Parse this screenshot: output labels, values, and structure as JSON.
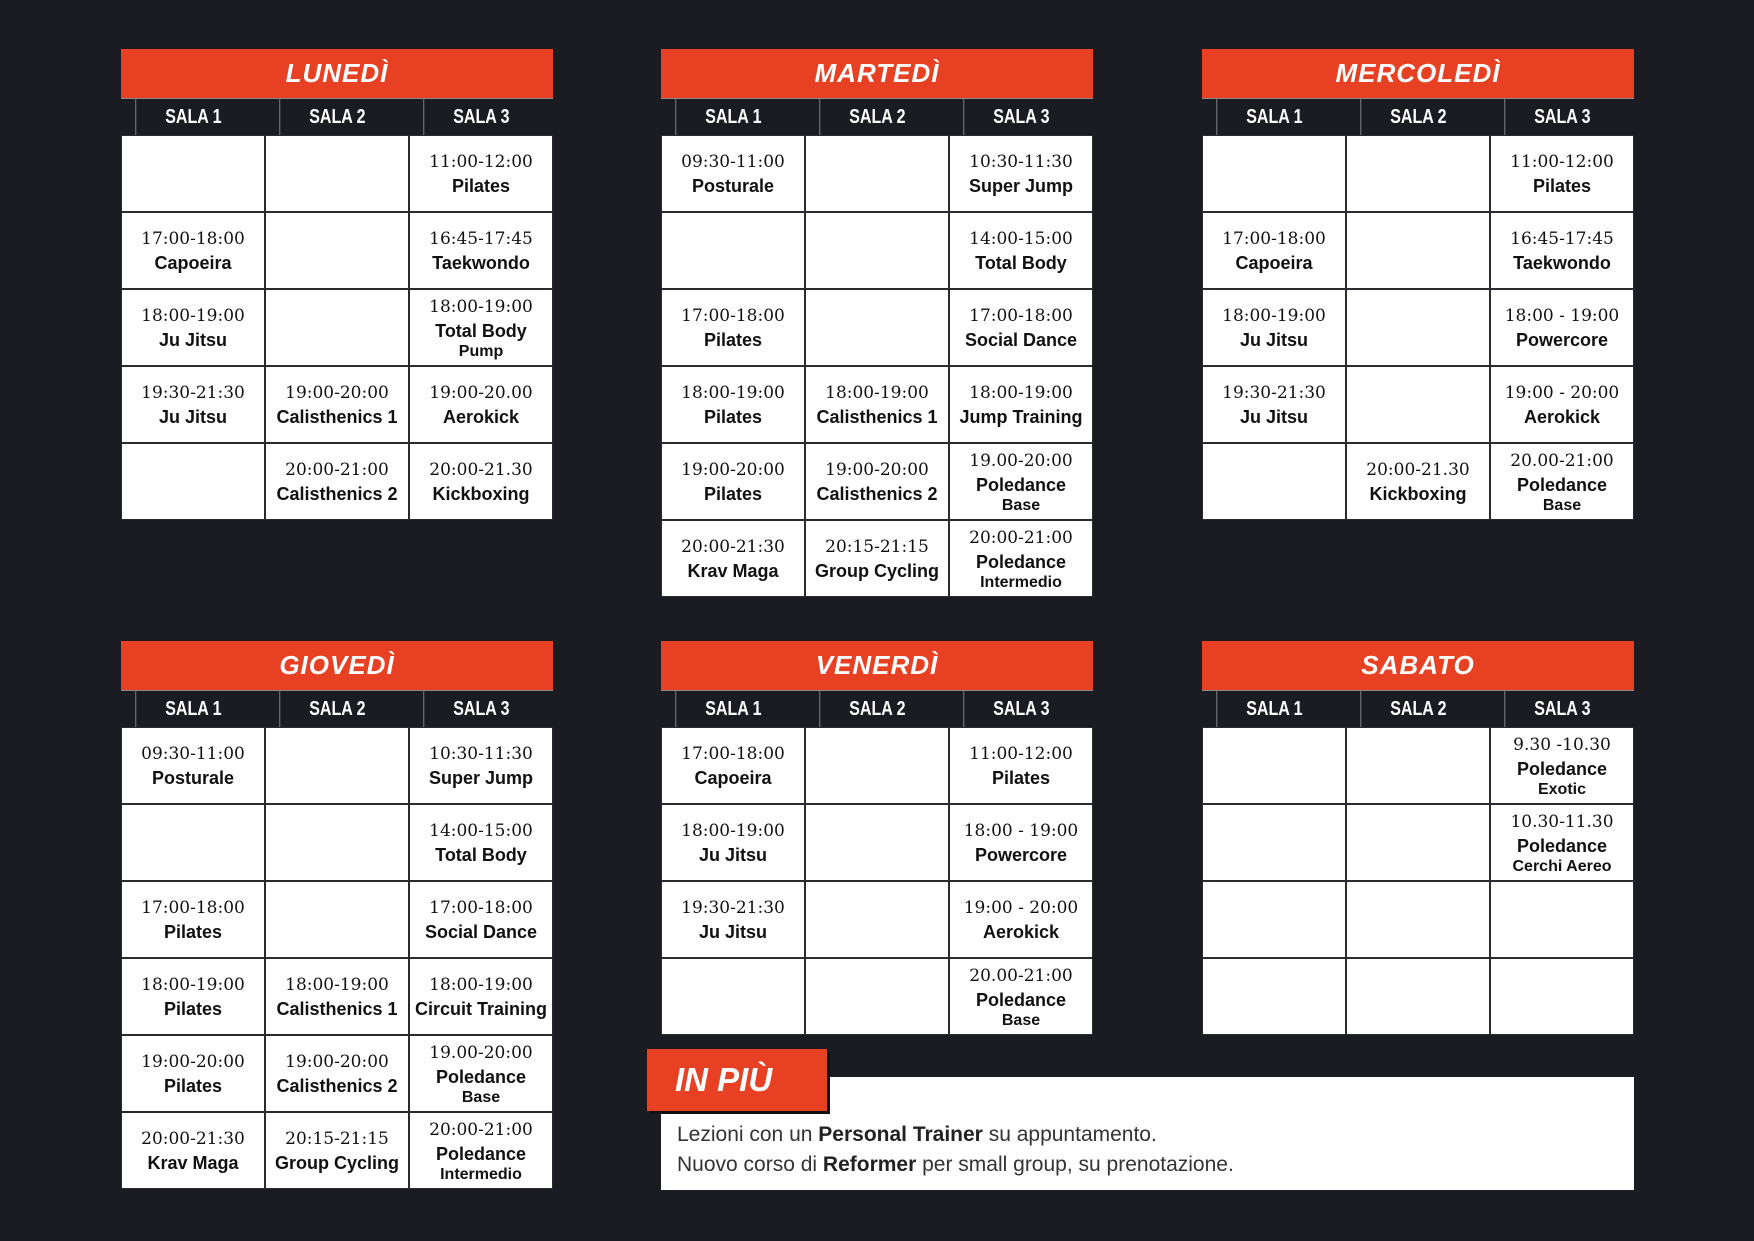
{
  "colors": {
    "accent": "#e84022",
    "background": "#1b1b22"
  },
  "sala_labels": [
    "SALA 1",
    "SALA 2",
    "SALA 3"
  ],
  "days": [
    {
      "title": "LUNEDÌ",
      "rows": [
        [
          {},
          {},
          {
            "time": "11:00-12:00",
            "name": "Pilates"
          }
        ],
        [
          {
            "time": "17:00-18:00",
            "name": "Capoeira"
          },
          {},
          {
            "time": "16:45-17:45",
            "name": "Taekwondo"
          }
        ],
        [
          {
            "time": "18:00-19:00",
            "name": "Ju Jitsu"
          },
          {},
          {
            "time": "18:00-19:00",
            "name": "Total Body",
            "sub": "Pump"
          }
        ],
        [
          {
            "time": "19:30-21:30",
            "name": "Ju Jitsu"
          },
          {
            "time": "19:00-20:00",
            "name": "Calisthenics 1"
          },
          {
            "time": "19:00-20.00",
            "name": "Aerokick"
          }
        ],
        [
          {},
          {
            "time": "20:00-21:00",
            "name": "Calisthenics 2"
          },
          {
            "time": "20:00-21.30",
            "name": "Kickboxing"
          }
        ]
      ]
    },
    {
      "title": "MARTEDÌ",
      "rows": [
        [
          {
            "time": "09:30-11:00",
            "name": "Posturale"
          },
          {},
          {
            "time": "10:30-11:30",
            "name": "Super Jump"
          }
        ],
        [
          {},
          {},
          {
            "time": "14:00-15:00",
            "name": "Total Body"
          }
        ],
        [
          {
            "time": "17:00-18:00",
            "name": "Pilates"
          },
          {},
          {
            "time": "17:00-18:00",
            "name": "Social Dance"
          }
        ],
        [
          {
            "time": "18:00-19:00",
            "name": "Pilates"
          },
          {
            "time": "18:00-19:00",
            "name": "Calisthenics 1"
          },
          {
            "time": "18:00-19:00",
            "name": "Jump Training"
          }
        ],
        [
          {
            "time": "19:00-20:00",
            "name": "Pilates"
          },
          {
            "time": "19:00-20:00",
            "name": "Calisthenics 2"
          },
          {
            "time": "19.00-20:00",
            "name": "Poledance",
            "sub": "Base"
          }
        ],
        [
          {
            "time": "20:00-21:30",
            "name": "Krav Maga"
          },
          {
            "time": "20:15-21:15",
            "name": "Group Cycling"
          },
          {
            "time": "20:00-21:00",
            "name": "Poledance",
            "sub": "Intermedio"
          }
        ]
      ]
    },
    {
      "title": "MERCOLEDÌ",
      "rows": [
        [
          {},
          {},
          {
            "time": "11:00-12:00",
            "name": "Pilates"
          }
        ],
        [
          {
            "time": "17:00-18:00",
            "name": "Capoeira"
          },
          {},
          {
            "time": "16:45-17:45",
            "name": "Taekwondo"
          }
        ],
        [
          {
            "time": "18:00-19:00",
            "name": "Ju Jitsu"
          },
          {},
          {
            "time": "18:00 - 19:00",
            "name": "Powercore"
          }
        ],
        [
          {
            "time": "19:30-21:30",
            "name": "Ju Jitsu"
          },
          {},
          {
            "time": "19:00 - 20:00",
            "name": "Aerokick"
          }
        ],
        [
          {},
          {
            "time": "20:00-21.30",
            "name": "Kickboxing"
          },
          {
            "time": "20.00-21:00",
            "name": "Poledance",
            "sub": "Base"
          }
        ]
      ]
    },
    {
      "title": "GIOVEDÌ",
      "rows": [
        [
          {
            "time": "09:30-11:00",
            "name": "Posturale"
          },
          {},
          {
            "time": "10:30-11:30",
            "name": "Super Jump"
          }
        ],
        [
          {},
          {},
          {
            "time": "14:00-15:00",
            "name": "Total Body"
          }
        ],
        [
          {
            "time": "17:00-18:00",
            "name": "Pilates"
          },
          {},
          {
            "time": "17:00-18:00",
            "name": "Social Dance"
          }
        ],
        [
          {
            "time": "18:00-19:00",
            "name": "Pilates"
          },
          {
            "time": "18:00-19:00",
            "name": "Calisthenics 1"
          },
          {
            "time": "18:00-19:00",
            "name": "Circuit Training"
          }
        ],
        [
          {
            "time": "19:00-20:00",
            "name": "Pilates"
          },
          {
            "time": "19:00-20:00",
            "name": "Calisthenics 2"
          },
          {
            "time": "19.00-20:00",
            "name": "Poledance",
            "sub": "Base"
          }
        ],
        [
          {
            "time": "20:00-21:30",
            "name": "Krav Maga"
          },
          {
            "time": "20:15-21:15",
            "name": "Group Cycling"
          },
          {
            "time": "20:00-21:00",
            "name": "Poledance",
            "sub": "Intermedio"
          }
        ]
      ]
    },
    {
      "title": "VENERDÌ",
      "rows": [
        [
          {
            "time": "17:00-18:00",
            "name": "Capoeira"
          },
          {},
          {
            "time": "11:00-12:00",
            "name": "Pilates"
          }
        ],
        [
          {
            "time": "18:00-19:00",
            "name": "Ju Jitsu"
          },
          {},
          {
            "time": "18:00 - 19:00",
            "name": "Powercore"
          }
        ],
        [
          {
            "time": "19:30-21:30",
            "name": "Ju Jitsu"
          },
          {},
          {
            "time": "19:00 - 20:00",
            "name": "Aerokick"
          }
        ],
        [
          {},
          {},
          {
            "time": "20.00-21:00",
            "name": "Poledance",
            "sub": "Base"
          }
        ]
      ]
    },
    {
      "title": "SABATO",
      "rows": [
        [
          {},
          {},
          {
            "time": "9.30  -10.30",
            "name": "Poledance",
            "sub": "Exotic"
          }
        ],
        [
          {},
          {},
          {
            "time": "10.30-11.30",
            "name": "Poledance",
            "sub": "Cerchi Aereo"
          }
        ],
        [
          {},
          {},
          {}
        ],
        [
          {},
          {},
          {}
        ]
      ]
    }
  ],
  "extra": {
    "title": "IN PIÙ",
    "line1_a": "Lezioni con un ",
    "line1_b": "Personal Trainer",
    "line1_c": " su appuntamento.",
    "line2_a": "Nuovo corso di ",
    "line2_b": "Reformer",
    "line2_c": " per small group, su prenotazione."
  }
}
